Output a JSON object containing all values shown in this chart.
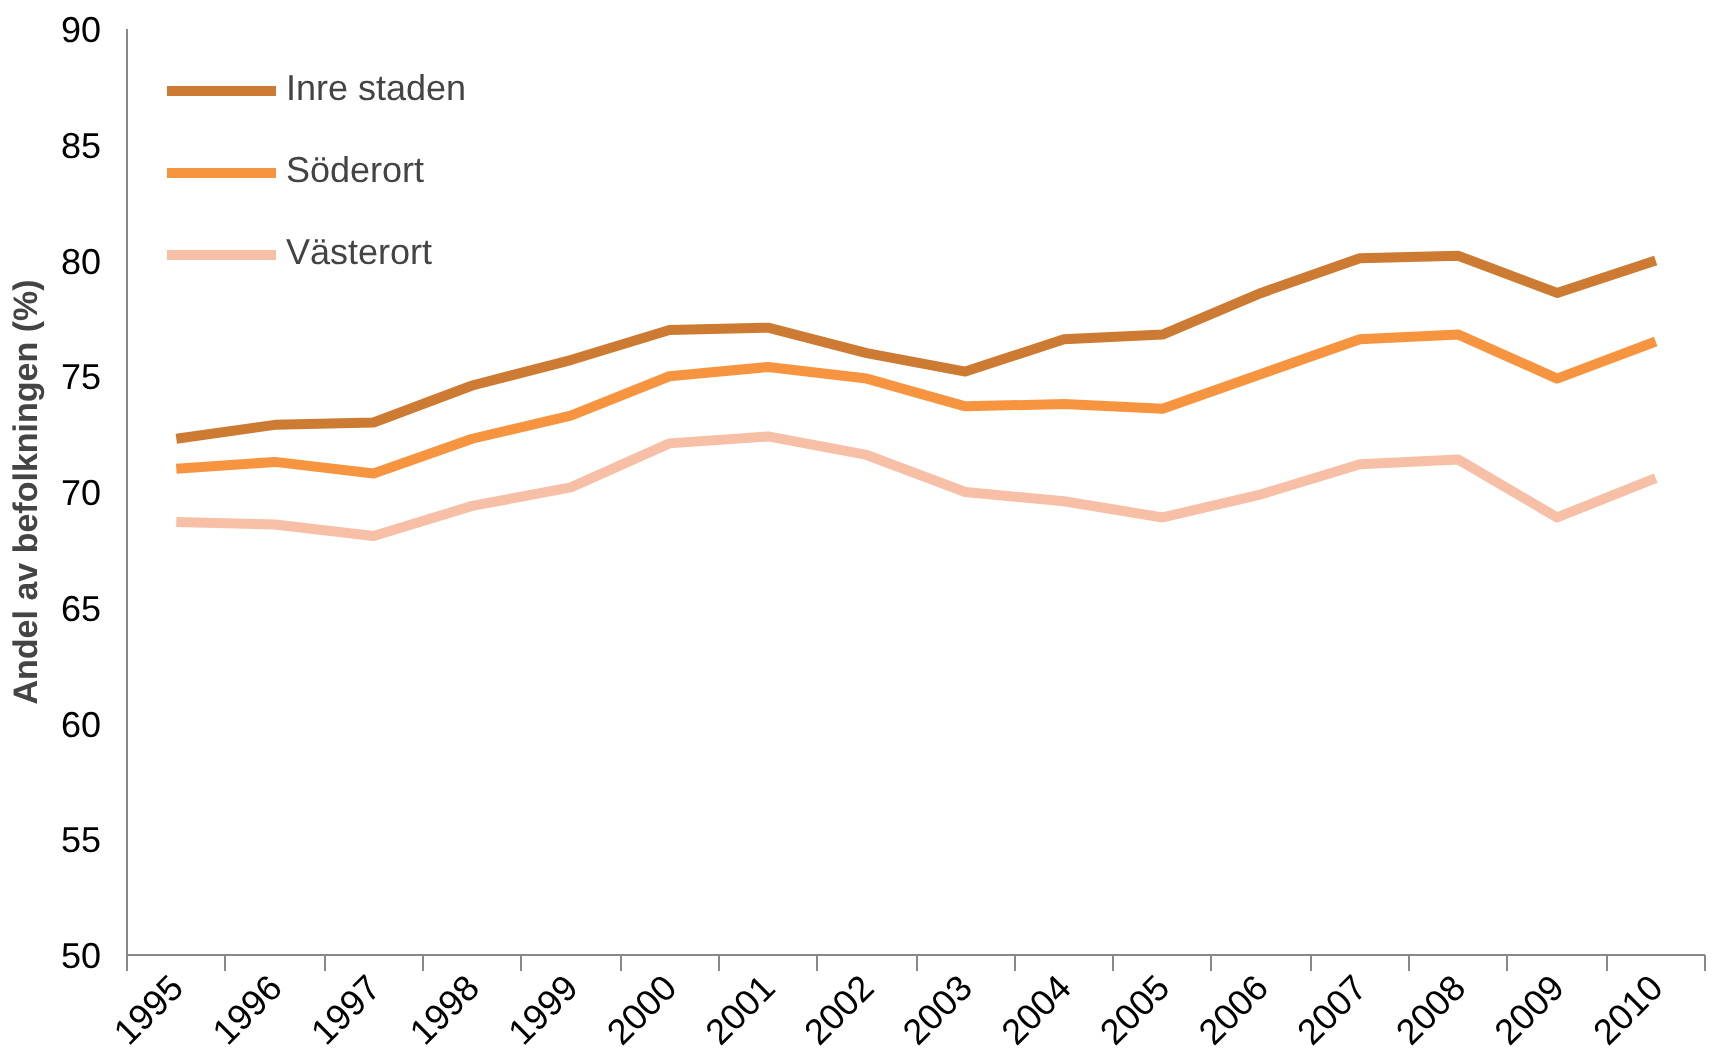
{
  "chart_data": {
    "type": "line",
    "ylabel": "Andel av befolkningen (%)",
    "categories": [
      "1995",
      "1996",
      "1997",
      "1998",
      "1999",
      "2000",
      "2001",
      "2002",
      "2003",
      "2004",
      "2005",
      "2006",
      "2007",
      "2008",
      "2009",
      "2010"
    ],
    "ylim": [
      50,
      90
    ],
    "yticks": [
      50,
      55,
      60,
      65,
      70,
      75,
      80,
      85,
      90
    ],
    "grid": false,
    "legend": "top left",
    "marker": "none",
    "line_style": "solid",
    "series": [
      {
        "name": "Inre staden",
        "color": "#cd7a33",
        "values": [
          72.3,
          72.9,
          73.0,
          74.6,
          75.7,
          77.0,
          77.1,
          76.0,
          75.2,
          76.6,
          76.8,
          78.6,
          80.1,
          80.2,
          78.6,
          80.0
        ]
      },
      {
        "name": "Söderort",
        "color": "#f79440",
        "values": [
          71.0,
          71.3,
          70.8,
          72.3,
          73.3,
          75.0,
          75.4,
          74.9,
          73.7,
          73.8,
          73.6,
          75.1,
          76.6,
          76.8,
          74.9,
          76.5
        ]
      },
      {
        "name": "Västerort",
        "color": "#f7bfa5",
        "values": [
          68.7,
          68.6,
          68.1,
          69.4,
          70.2,
          72.1,
          72.4,
          71.6,
          70.0,
          69.6,
          68.9,
          69.9,
          71.2,
          71.4,
          68.9,
          70.6
        ]
      }
    ]
  }
}
